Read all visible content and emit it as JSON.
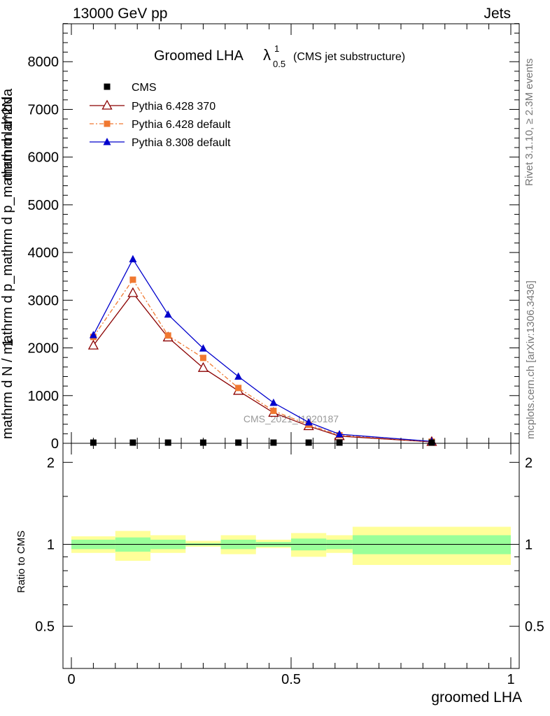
{
  "header": {
    "left": "13000 GeV pp",
    "right": "Jets"
  },
  "side_labels": {
    "rivet": "Rivet 3.1.10, ≥ 2.3M events",
    "mcplots": "mcplots.cern.ch [arXiv:1306.3436]"
  },
  "watermark": "CMS_2021_I1920187",
  "chart_data": [
    {
      "type": "line",
      "title": "Groomed LHA",
      "title_symbol": "λ",
      "title_sup": "1",
      "title_sub": "0.5",
      "subtitle": "(CMS jet substructure)",
      "ylabel_numerator": "mathrm d^2N",
      "ylabel_denominator": "mathrm d N / mathrm d p_mathrm d p_mathrm d lambda",
      "ylabel_prefix": "1",
      "xlim": [
        0,
        1
      ],
      "ylim": [
        0,
        8800
      ],
      "yticks": [
        0,
        1000,
        2000,
        3000,
        4000,
        5000,
        6000,
        7000,
        8000
      ],
      "ytick_labels": [
        "0",
        "1000",
        "2000",
        "3000",
        "4000",
        "5000",
        "6000",
        "7000",
        "8000"
      ],
      "legend_position": "top-left",
      "bin_edges": [
        0,
        0.1,
        0.18,
        0.26,
        0.34,
        0.42,
        0.5,
        0.58,
        0.64,
        1.0
      ],
      "series": [
        {
          "name": "CMS",
          "color": "#000000",
          "marker": "square",
          "x": [
            0.05,
            0.14,
            0.22,
            0.3,
            0.38,
            0.46,
            0.54,
            0.61,
            0.82
          ],
          "values": [
            10,
            12,
            14,
            16,
            12,
            9,
            7,
            5,
            2
          ]
        },
        {
          "name": "Pythia 6.428 370",
          "color": "#8b0000",
          "marker": "open-triangle",
          "x": [
            0.05,
            0.14,
            0.22,
            0.3,
            0.38,
            0.46,
            0.54,
            0.61,
            0.82
          ],
          "values": [
            2050,
            3150,
            2220,
            1580,
            1100,
            640,
            360,
            150,
            30
          ]
        },
        {
          "name": "Pythia 6.428 default",
          "color": "#f07830",
          "marker": "square",
          "dashed": true,
          "x": [
            0.05,
            0.14,
            0.22,
            0.3,
            0.38,
            0.46,
            0.54,
            0.61,
            0.82
          ],
          "values": [
            2230,
            3430,
            2260,
            1790,
            1160,
            680,
            390,
            170,
            35
          ]
        },
        {
          "name": "Pythia 8.308 default",
          "color": "#0000cc",
          "marker": "triangle",
          "x": [
            0.05,
            0.14,
            0.22,
            0.3,
            0.38,
            0.46,
            0.54,
            0.61,
            0.82
          ],
          "values": [
            2270,
            3860,
            2700,
            1990,
            1400,
            850,
            440,
            190,
            40
          ]
        }
      ]
    },
    {
      "type": "area",
      "ylabel": "Ratio to CMS",
      "xlabel": "groomed LHA",
      "xlim": [
        0,
        1
      ],
      "ylim": [
        0.35,
        2.35
      ],
      "yscale": "log",
      "yticks": [
        0.5,
        1,
        2
      ],
      "ytick_labels": [
        "0.5",
        "1",
        "2"
      ],
      "xticks": [
        0,
        0.5,
        1
      ],
      "xtick_labels": [
        "0",
        "0.5",
        "1"
      ],
      "bands": {
        "colors": {
          "inner": "#99ff99",
          "outer": "#ffff99"
        },
        "bins": [
          {
            "x0": 0.0,
            "x1": 0.1,
            "inner": [
              0.96,
              1.04
            ],
            "outer": [
              0.93,
              1.07
            ]
          },
          {
            "x0": 0.1,
            "x1": 0.18,
            "inner": [
              0.94,
              1.06
            ],
            "outer": [
              0.87,
              1.12
            ]
          },
          {
            "x0": 0.18,
            "x1": 0.26,
            "inner": [
              0.96,
              1.04
            ],
            "outer": [
              0.93,
              1.08
            ]
          },
          {
            "x0": 0.26,
            "x1": 0.34,
            "inner": [
              0.99,
              1.01
            ],
            "outer": [
              0.98,
              1.03
            ]
          },
          {
            "x0": 0.34,
            "x1": 0.42,
            "inner": [
              0.96,
              1.04
            ],
            "outer": [
              0.92,
              1.08
            ]
          },
          {
            "x0": 0.42,
            "x1": 0.5,
            "inner": [
              0.98,
              1.02
            ],
            "outer": [
              0.97,
              1.04
            ]
          },
          {
            "x0": 0.5,
            "x1": 0.58,
            "inner": [
              0.95,
              1.05
            ],
            "outer": [
              0.9,
              1.1
            ]
          },
          {
            "x0": 0.58,
            "x1": 0.64,
            "inner": [
              0.96,
              1.04
            ],
            "outer": [
              0.93,
              1.08
            ]
          },
          {
            "x0": 0.64,
            "x1": 1.0,
            "inner": [
              0.92,
              1.08
            ],
            "outer": [
              0.84,
              1.16
            ]
          }
        ]
      },
      "reference": 1
    }
  ]
}
